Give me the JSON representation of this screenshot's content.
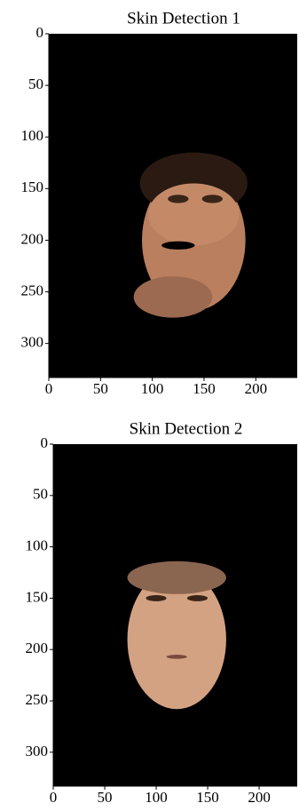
{
  "chart_data": [
    {
      "type": "image",
      "title": "Skin Detection 1",
      "xlim": [
        0,
        240
      ],
      "ylim": [
        333,
        0
      ],
      "xticks": [
        0,
        50,
        100,
        150,
        200
      ],
      "yticks": [
        0,
        50,
        100,
        150,
        200,
        250,
        300
      ]
    },
    {
      "type": "image",
      "title": "Skin Detection 2",
      "xlim": [
        0,
        237
      ],
      "ylim": [
        333,
        0
      ],
      "xticks": [
        0,
        50,
        100,
        150,
        200
      ],
      "yticks": [
        0,
        50,
        100,
        150,
        200,
        250,
        300
      ]
    }
  ]
}
